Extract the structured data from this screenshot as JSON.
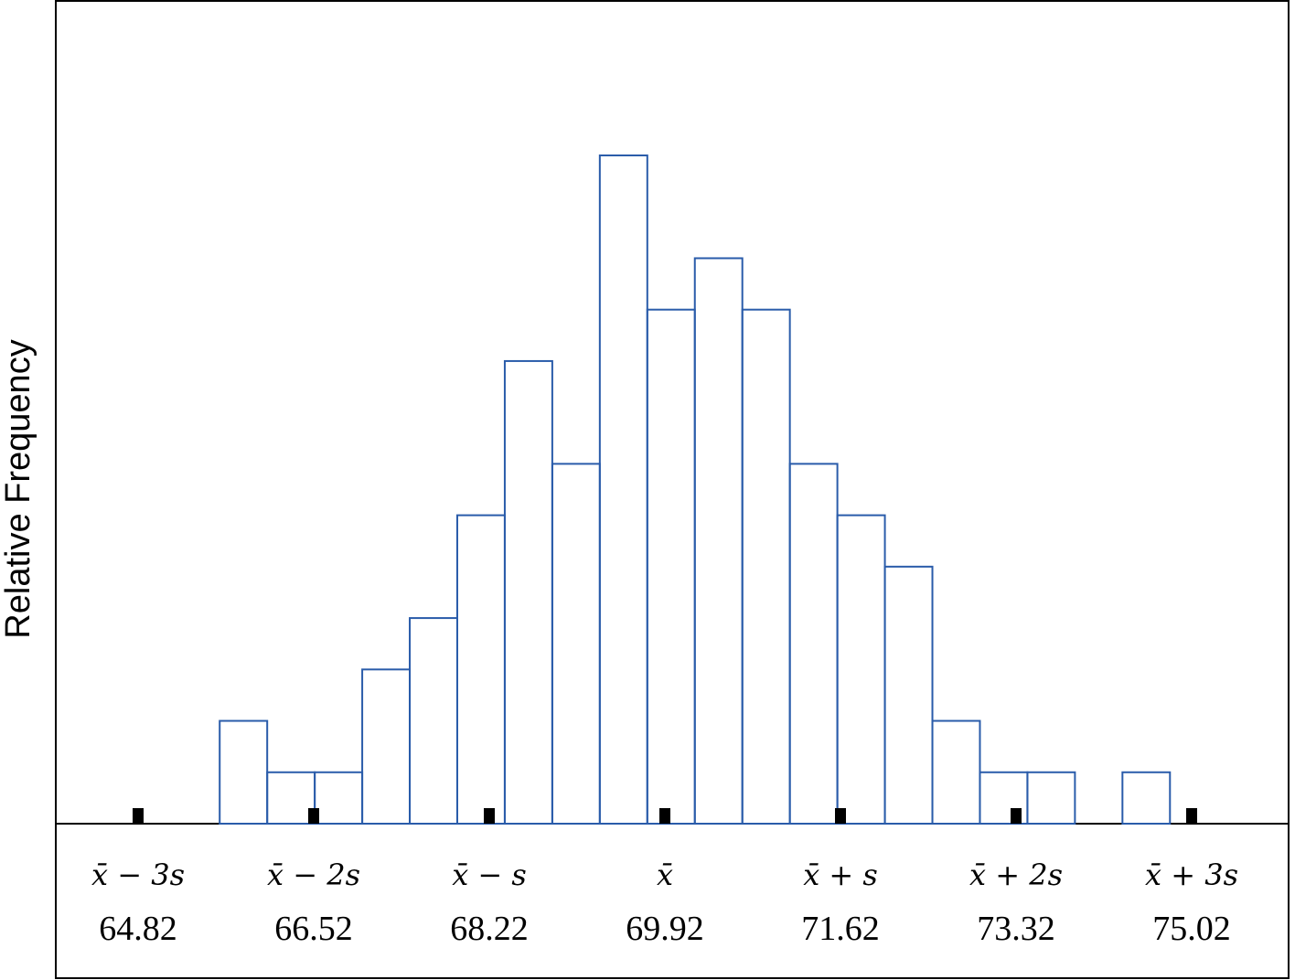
{
  "chart_data": {
    "type": "bar",
    "title": "",
    "xlabel": "",
    "ylabel": "Relative Frequency",
    "bin_start": 65.61,
    "bin_width": 0.46,
    "values": [
      2,
      1,
      1,
      3,
      4,
      6,
      9,
      7,
      13,
      10,
      11,
      10,
      7,
      6,
      5,
      2,
      1,
      1,
      0,
      1
    ],
    "ylim": [
      0,
      16
    ],
    "xlim": [
      64.04,
      76.0
    ],
    "bar_color": "#2a5caa",
    "ticks": [
      {
        "symbol": "x̄ − 3s",
        "value": "64.82"
      },
      {
        "symbol": "x̄ − 2s",
        "value": "66.52"
      },
      {
        "symbol": "x̄ − s",
        "value": "68.22"
      },
      {
        "symbol": "x̄",
        "value": "69.92"
      },
      {
        "symbol": "x̄ + s",
        "value": "71.62"
      },
      {
        "symbol": "x̄ + 2s",
        "value": "73.32"
      },
      {
        "symbol": "x̄ + 3s",
        "value": "75.02"
      }
    ],
    "grid": false
  }
}
